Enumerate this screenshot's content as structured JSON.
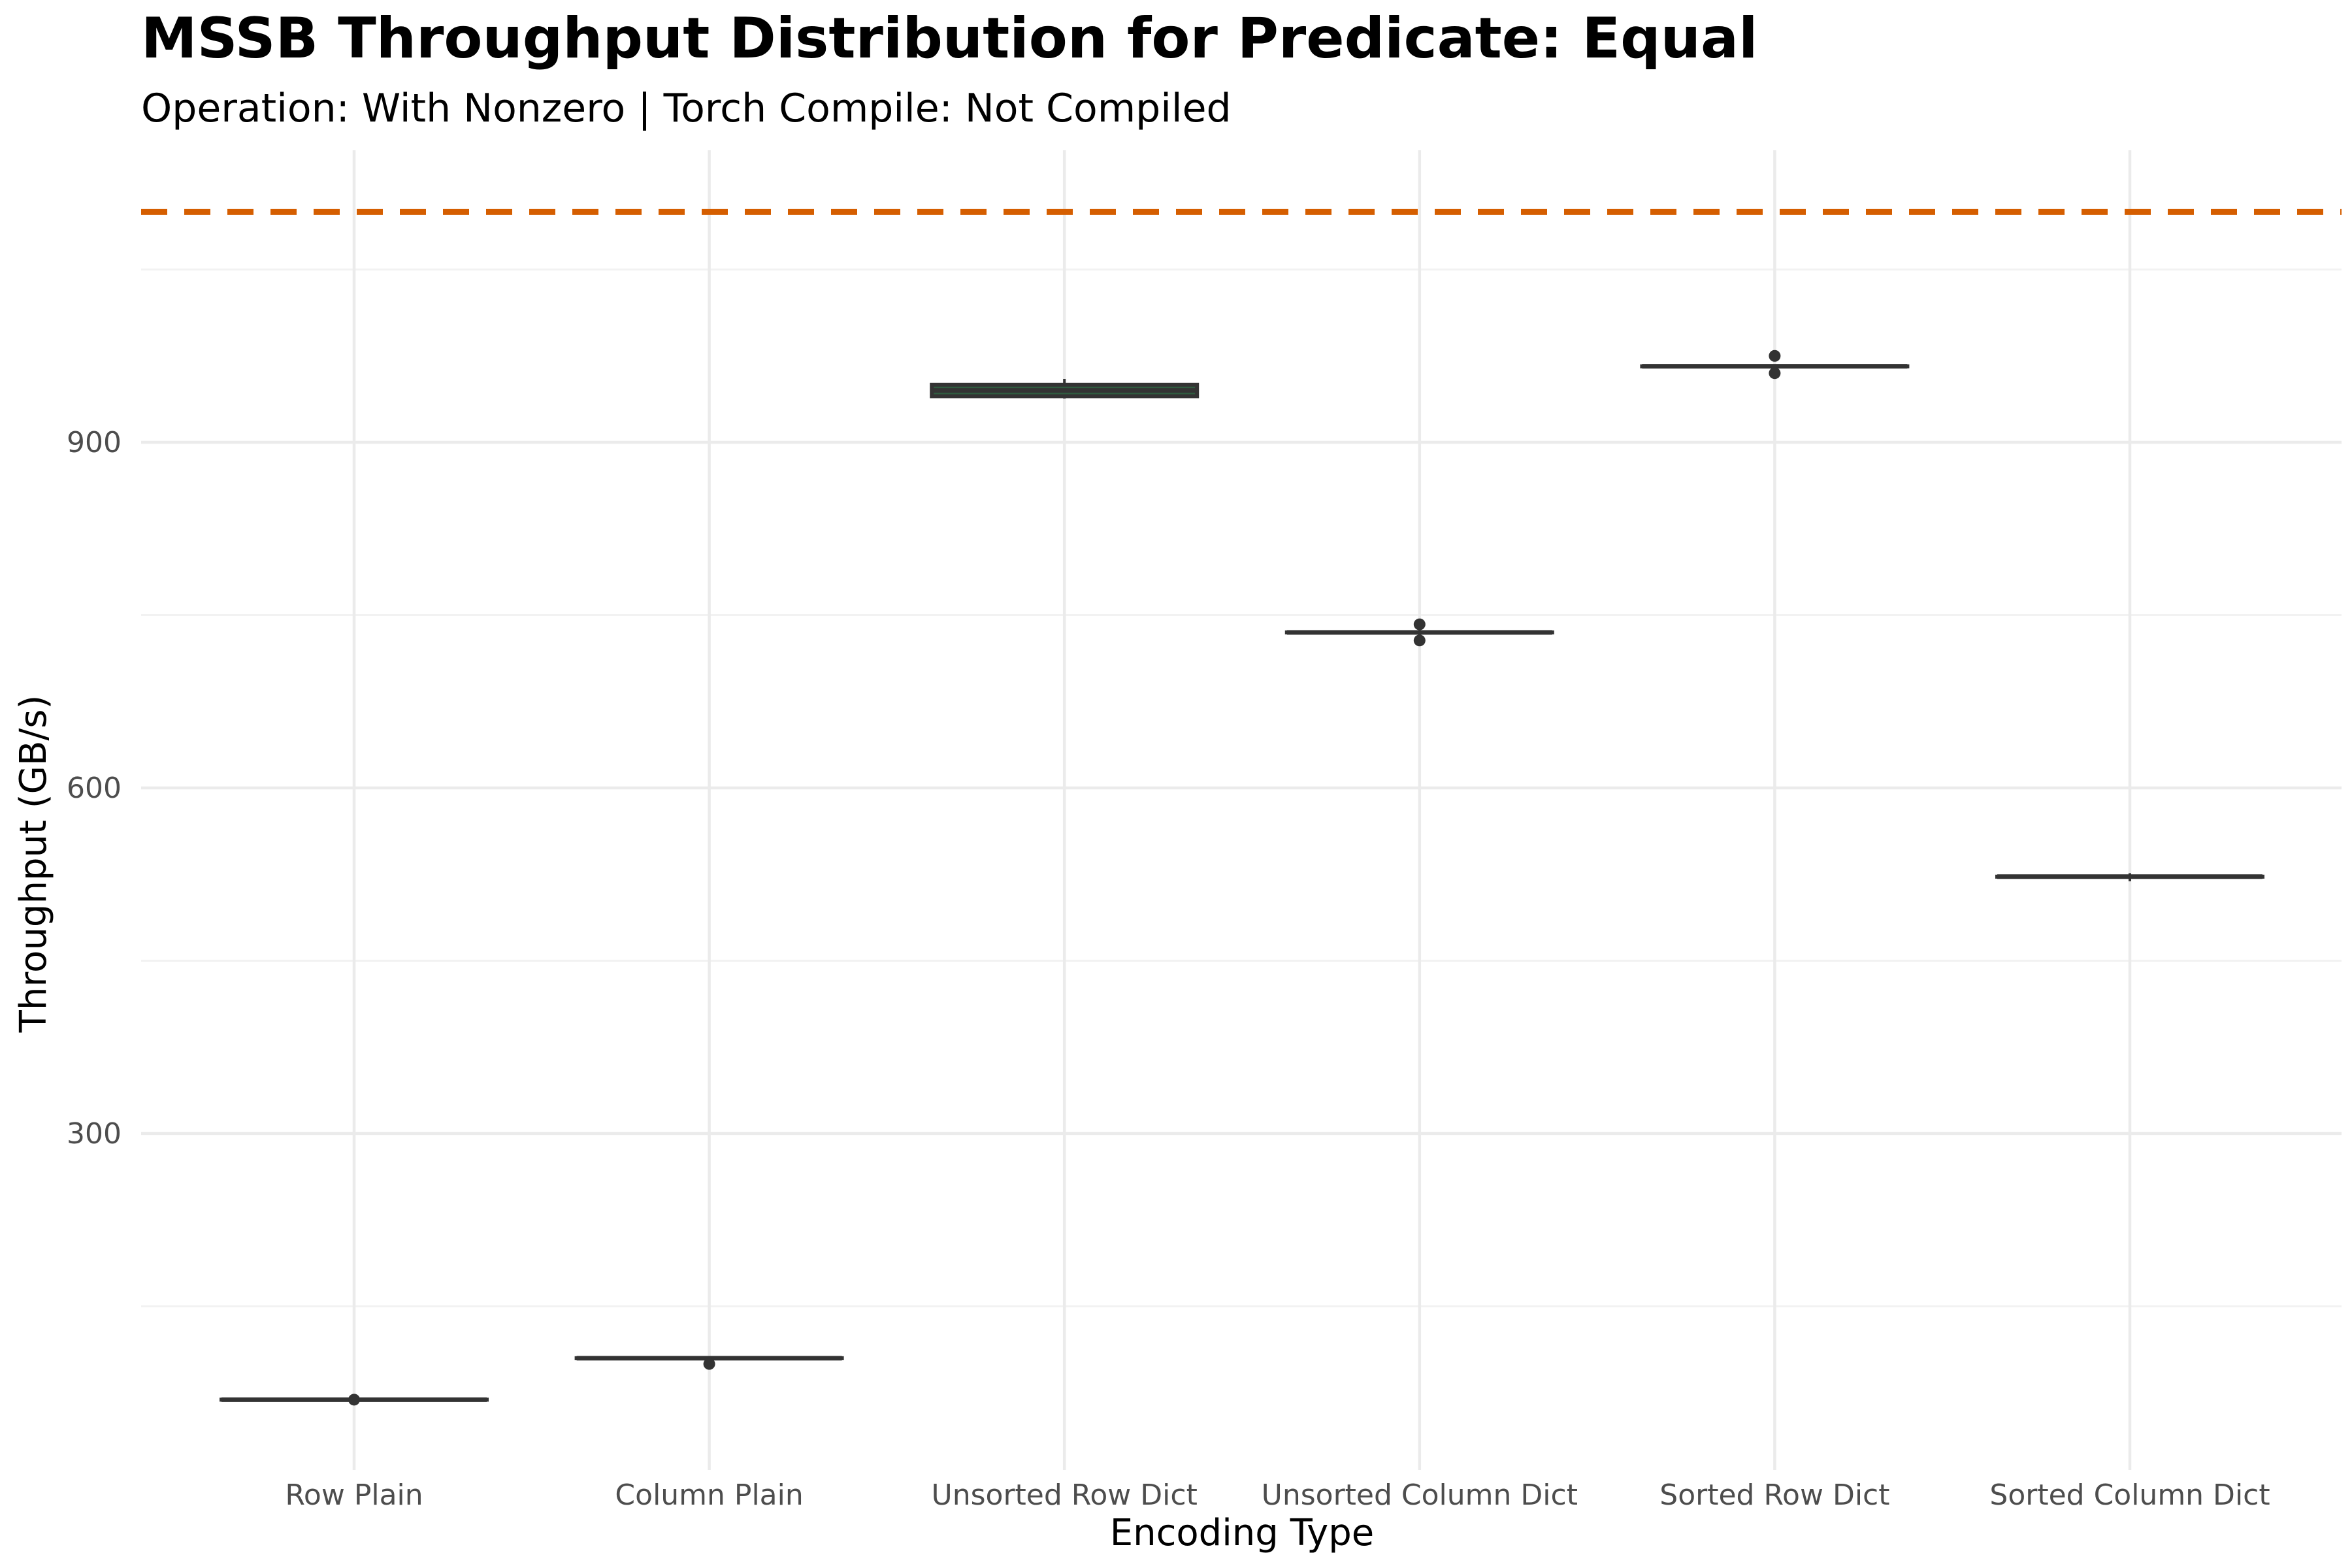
{
  "chart_data": {
    "type": "box",
    "title": "MSSB Throughput Distribution for Predicate: Equal",
    "subtitle": "Operation: With Nonzero | Torch Compile: Not Compiled",
    "xlabel": "Encoding Type",
    "ylabel": "Throughput (GB/s)",
    "ylim": [
      0,
      1150
    ],
    "yticks": [
      300,
      600,
      900
    ],
    "grid": true,
    "categories": [
      "Row Plain",
      "Column Plain",
      "Unsorted Row Dict",
      "Unsorted Column Dict",
      "Sorted Row Dict",
      "Sorted Column Dict"
    ],
    "boxes": [
      {
        "category": "Row Plain",
        "q1": 69,
        "median": 69,
        "q3": 69,
        "whisker_low": 69,
        "whisker_high": 69,
        "outliers": [
          69
        ],
        "fill": "#2d4f3a"
      },
      {
        "category": "Column Plain",
        "q1": 105,
        "median": 105,
        "q3": 105,
        "whisker_low": 105,
        "whisker_high": 105,
        "outliers": [
          100
        ],
        "fill": "#2d4f3a"
      },
      {
        "category": "Unsorted Row Dict",
        "q1": 940,
        "median": 945,
        "q3": 950,
        "whisker_low": 938,
        "whisker_high": 955,
        "outliers": [],
        "fill": "#2f5c3f"
      },
      {
        "category": "Unsorted Column Dict",
        "q1": 735,
        "median": 735,
        "q3": 735,
        "whisker_low": 735,
        "whisker_high": 735,
        "outliers": [
          742,
          728
        ],
        "fill": "#2d4f3a"
      },
      {
        "category": "Sorted Row Dict",
        "q1": 966,
        "median": 966,
        "q3": 966,
        "whisker_low": 966,
        "whisker_high": 966,
        "outliers": [
          975,
          960
        ],
        "fill": "#2d4f3a"
      },
      {
        "category": "Sorted Column Dict",
        "q1": 523,
        "median": 523,
        "q3": 523,
        "whisker_low": 519,
        "whisker_high": 526,
        "outliers": [],
        "fill": "#2d4f3a"
      }
    ],
    "reference_line": {
      "y": 1100,
      "color": "#d55e00",
      "style": "dashed"
    },
    "colors": {
      "box_line": "#333333",
      "outlier": "#333333",
      "grid_major": "#ebebeb",
      "grid_minor": "#f2f2f2"
    }
  }
}
